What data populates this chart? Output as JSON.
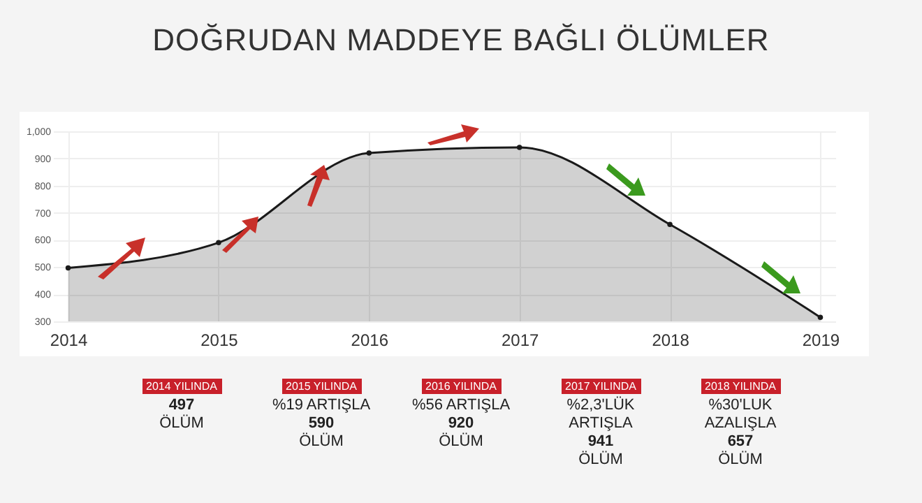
{
  "chart_data": {
    "type": "area",
    "title": "DOĞRUDAN MADDEYE BAĞLI ÖLÜMLER",
    "categories": [
      "2014",
      "2015",
      "2016",
      "2017",
      "2018",
      "2019"
    ],
    "series": [
      {
        "color": "#1a1a1a",
        "values": [
          497,
          590,
          920,
          941,
          657,
          315
        ]
      }
    ],
    "ylim": [
      300,
      1000
    ],
    "yticks": [
      300,
      400,
      500,
      600,
      700,
      800,
      900,
      {
        "value": 1000,
        "label": "1,000"
      }
    ],
    "grid": true,
    "marker": "circle",
    "annotations": [
      "2014 YILINDA\n497\nÖLÜM",
      "2015 YILINDA\n%19 ARTIŞLA\n590\nÖLÜM",
      "2016 YILINDA\n%56 ARTIŞLA\n920\nÖLÜM",
      "2017 YILINDA\n%2,3'LÜK\nARTIŞLA\n941\nÖLÜM",
      "2018 YILINDA\n%30'LUK\nAZALIŞLA\n657\nÖLÜM"
    ]
  }
}
